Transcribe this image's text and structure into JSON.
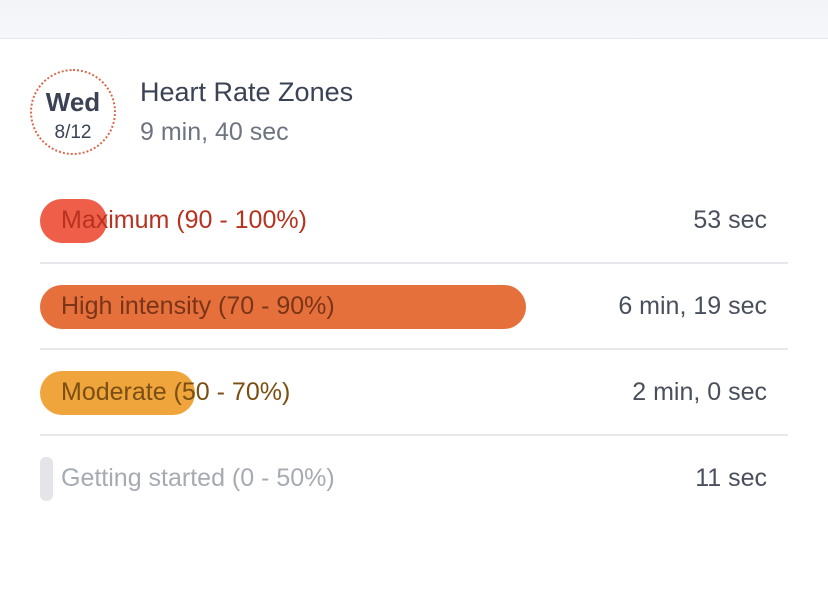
{
  "header": {
    "day": "Wed",
    "date": "8/12",
    "title": "Heart Rate Zones",
    "total_time": "9 min, 40 sec"
  },
  "zones": [
    {
      "label": "Maximum (90 - 100%)",
      "time": "53 sec",
      "fraction": 0.09,
      "bar_color": "#ee5e48",
      "label_color": "#b8321f"
    },
    {
      "label": "High intensity (70 - 90%)",
      "time": "6 min, 19 sec",
      "fraction": 0.65,
      "bar_color": "#e5703b",
      "label_color": "#7a3418"
    },
    {
      "label": "Moderate (50 - 70%)",
      "time": "2 min, 0 sec",
      "fraction": 0.207,
      "bar_color": "#efa53b",
      "label_color": "#7a4f13"
    },
    {
      "label": "Getting started (0 - 50%)",
      "time": "11 sec",
      "fraction": 0.018,
      "bar_color": "#e3e5e9",
      "label_color": "#a6abb2"
    }
  ]
}
